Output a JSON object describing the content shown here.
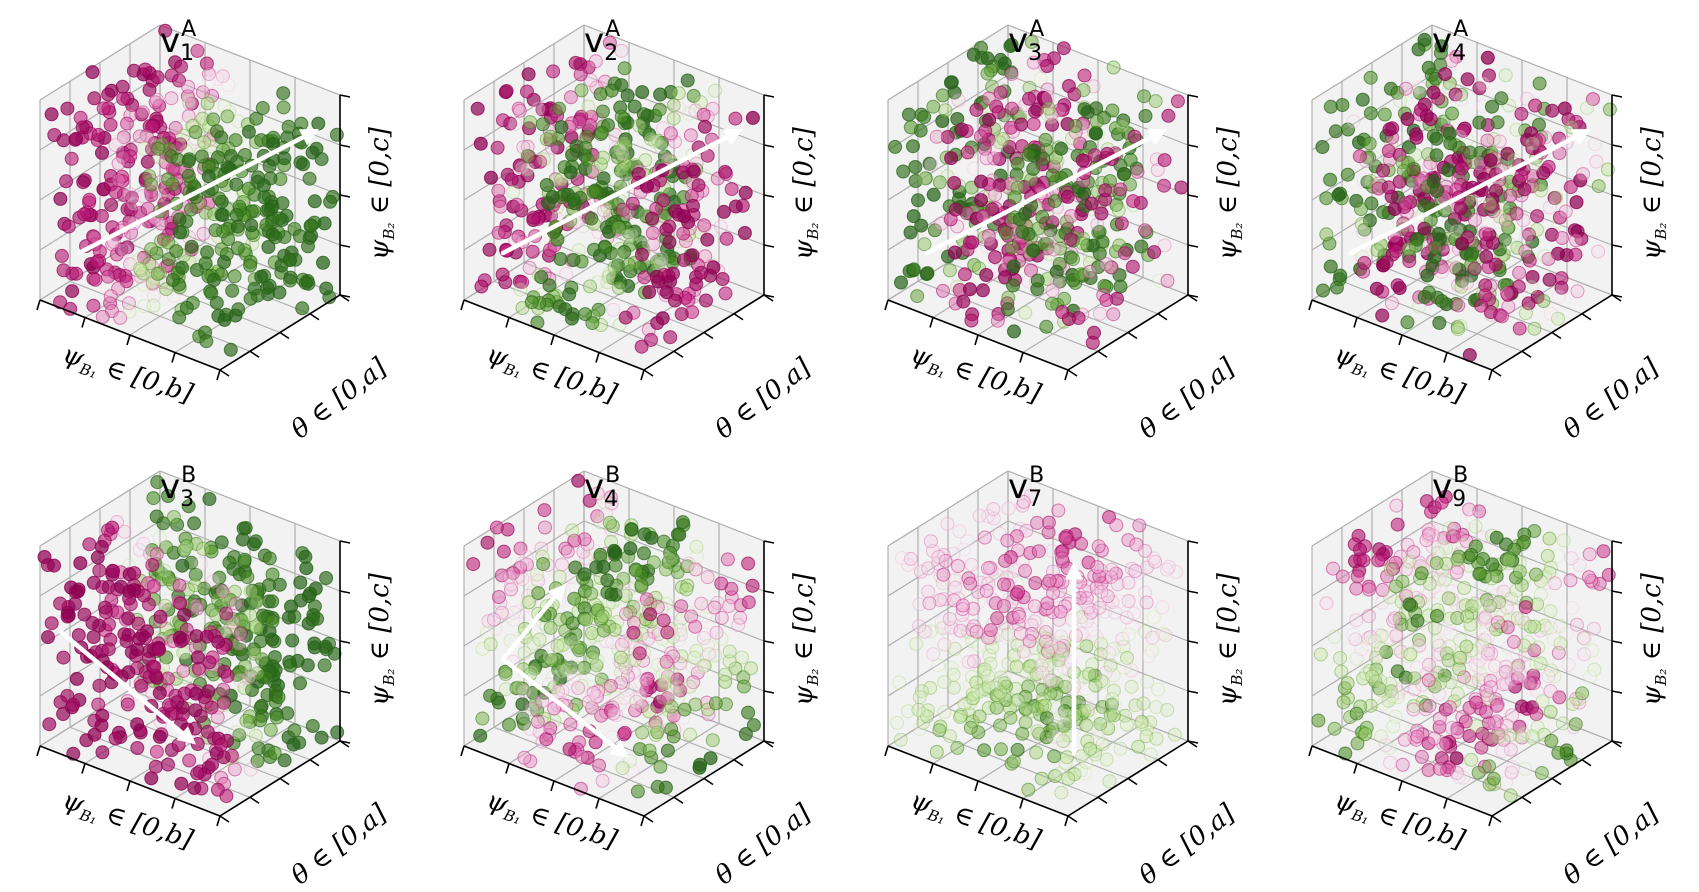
{
  "figure": {
    "panels": [
      {
        "base": "v",
        "sub": "1",
        "sup": "A",
        "pattern": "blobs-x",
        "arrows": [
          [
            0.15,
            0.1,
            0.25,
            0.95,
            0.9,
            0.85
          ]
        ]
      },
      {
        "base": "v",
        "sub": "2",
        "sup": "A",
        "pattern": "stripes-x",
        "arrows": [
          [
            0.15,
            0.1,
            0.25,
            0.95,
            0.9,
            0.85
          ]
        ]
      },
      {
        "base": "v",
        "sub": "3",
        "sup": "A",
        "pattern": "stripes-x3",
        "arrows": [
          [
            0.15,
            0.1,
            0.25,
            0.95,
            0.9,
            0.85
          ]
        ]
      },
      {
        "base": "v",
        "sub": "4",
        "sup": "A",
        "pattern": "stripes-x4",
        "arrows": [
          [
            0.15,
            0.1,
            0.25,
            0.95,
            0.9,
            0.85
          ]
        ]
      },
      {
        "base": "v",
        "sub": "3",
        "sup": "B",
        "pattern": "front-back",
        "arrows": [
          [
            0.05,
            0.1,
            0.55,
            0.8,
            0.1,
            0.25
          ]
        ]
      },
      {
        "base": "v",
        "sub": "4",
        "sup": "B",
        "pattern": "checker",
        "arrows": [
          [
            0.15,
            0.1,
            0.45,
            0.85,
            0.1,
            0.2
          ],
          [
            0.15,
            0.1,
            0.45,
            0.5,
            0.1,
            0.95
          ]
        ]
      },
      {
        "base": "v",
        "sub": "7",
        "sup": "B",
        "pattern": "vertical",
        "arrows": [
          [
            0.7,
            0.5,
            0.02,
            0.7,
            0.5,
            0.98
          ]
        ]
      },
      {
        "base": "v",
        "sub": "9",
        "sup": "B",
        "pattern": "mixed",
        "arrows": []
      }
    ],
    "axis_labels": {
      "x_sym": "ψ",
      "x_sub": "B₁",
      "x_rest": " ∈ [0,b]",
      "y_sym": "θ",
      "y_rest": " ∈ [0,a]",
      "z_sym": "ψ",
      "z_sub": "B₂",
      "z_rest": " ∈ [0,c]"
    },
    "colors": {
      "pink_dark": "#8e0152",
      "pink_mid": "#c51b7d",
      "pink_light": "#f1b6da",
      "neutral": "#f7f7f7",
      "green_light": "#b8e186",
      "green_mid": "#4d9221",
      "green_dark": "#276419",
      "arrow": "#ffffff",
      "grid": "#b0b0b0",
      "pane": "#f2f2f2"
    }
  },
  "chart_data": {
    "type": "scatter",
    "title": "",
    "xlabel": "ψ_{B1} ∈ [0,b]",
    "ylabel": "θ ∈ [0,a]",
    "zlabel": "ψ_{B2} ∈ [0,c]",
    "colormap": "PiYG",
    "panels": [
      "v_1^A",
      "v_2^A",
      "v_3^A",
      "v_4^A",
      "v_3^B",
      "v_4^B",
      "v_7^B",
      "v_9^B"
    ]
  }
}
